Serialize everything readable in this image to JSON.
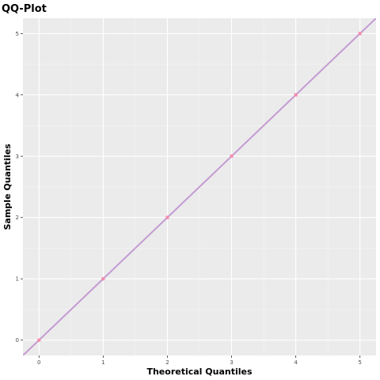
{
  "chart_data": {
    "type": "scatter",
    "title": "QQ-Plot",
    "xlabel": "Theoretical Quantiles",
    "ylabel": "Sample Quantiles",
    "xlim": [
      -0.25,
      5.25
    ],
    "ylim": [
      -0.25,
      5.25
    ],
    "x_ticks": [
      "0",
      "1",
      "2",
      "3",
      "4",
      "5"
    ],
    "y_ticks": [
      "0",
      "1",
      "2",
      "3",
      "4",
      "5"
    ],
    "grid": true,
    "series": [
      {
        "type": "scatter",
        "color": "#f48fb1",
        "points": [
          [
            0,
            0
          ],
          [
            1,
            1
          ],
          [
            2,
            2
          ],
          [
            3,
            3
          ],
          [
            4,
            4
          ],
          [
            5,
            5
          ]
        ]
      },
      {
        "type": "reference_line",
        "color": "#c39bd3",
        "slope": 1,
        "intercept": 0
      }
    ]
  }
}
